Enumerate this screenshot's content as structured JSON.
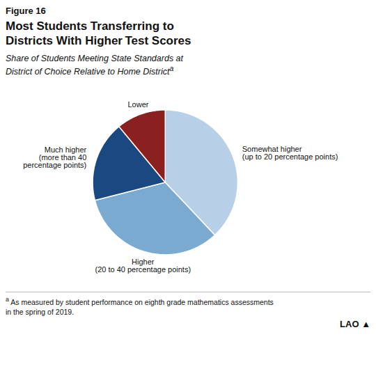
{
  "chart_data": {
    "type": "pie",
    "figure_label": "Figure 16",
    "title": "Most Students Transferring to\nDistricts With Higher Test Scores",
    "subtitle": "Share of Students Meeting State Standards at\nDistrict of Choice Relative to Home District",
    "subtitle_mark": "a",
    "categories": [
      "Somewhat higher\n(up to 20 percentage points)",
      "Higher\n(20 to 40 percentage points)",
      "Much higher\n(more than 40\npercentage points)",
      "Lower"
    ],
    "values": [
      38,
      33,
      18,
      11
    ],
    "colors": [
      "#b8cfe8",
      "#7aaad0",
      "#1a4880",
      "#8b2020"
    ],
    "data_labels": false,
    "footnote_mark": "a",
    "footnote": "As measured by student performance on eighth grade mathematics assessments\nin the spring of 2019.",
    "logo": "LAO",
    "logo_mark": "▲"
  }
}
